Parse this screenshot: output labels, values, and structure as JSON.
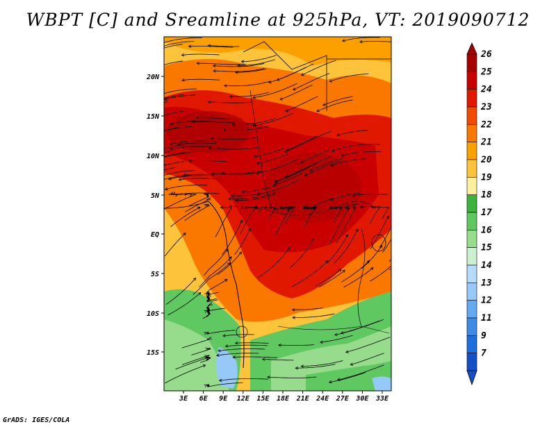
{
  "title": "WBPT [C] and Sreamline at 925hPa, VT: 2019090712",
  "footer": "GrADS: IGES/COLA",
  "lat_labels": [
    "20N",
    "15N",
    "10N",
    "5N",
    "EQ",
    "5S",
    "10S",
    "15S"
  ],
  "lon_labels": [
    "3E",
    "6E",
    "9E",
    "12E",
    "15E",
    "18E",
    "21E",
    "24E",
    "27E",
    "30E",
    "33E"
  ],
  "colorbar": {
    "levels": [
      "26",
      "25",
      "24",
      "23",
      "22",
      "21",
      "20",
      "19",
      "18",
      "17",
      "16",
      "15",
      "14",
      "13",
      "12",
      "11",
      "9",
      "7"
    ],
    "colors": [
      "#a50000",
      "#c80000",
      "#e11800",
      "#f04b00",
      "#fa7800",
      "#fca000",
      "#fdc33a",
      "#fff0a0",
      "#3cb43c",
      "#60c860",
      "#96dc8c",
      "#ccf0d0",
      "#b4dcfa",
      "#96c8f8",
      "#64aaf0",
      "#3c8ce6",
      "#1e6edc",
      "#1450c8"
    ]
  }
}
